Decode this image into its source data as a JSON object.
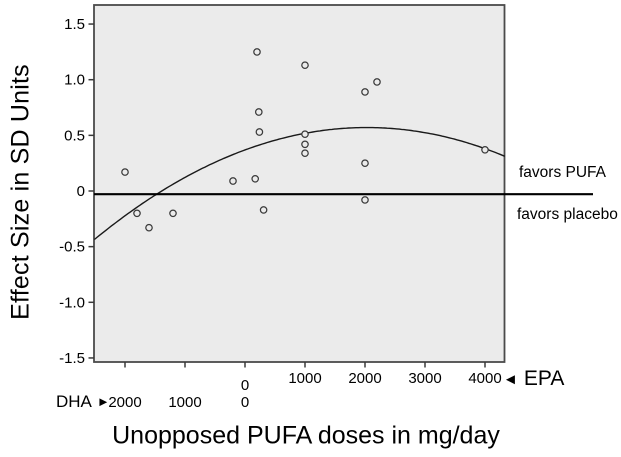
{
  "figure": {
    "y_axis_title": "Effect Size in SD Units",
    "x_axis_title": "Unopposed PUFA doses in mg/day",
    "favors_pufa": "favors PUFA",
    "favors_placebo": "favors placebo",
    "dha_label": "DHA",
    "epa_label": "EPA",
    "dha_arrow": "►",
    "epa_arrow": "◄"
  },
  "chart_data": {
    "type": "scatter",
    "title": "",
    "xlabel": "Unopposed PUFA doses in mg/day",
    "ylabel": "Effect Size in SD Units",
    "ylim": [
      -1.5,
      1.5
    ],
    "y_tick_labels": [
      "1.5",
      "1.0",
      "0.5",
      "0",
      "-0.5",
      "-1.0",
      "-1.5"
    ],
    "x_axis": {
      "note": "dual dose scale in mg/day: DHA decreases left-to-right to 0, then EPA increases; negative dose below means DHA side",
      "epa_tick_labels": [
        "0",
        "1000",
        "2000",
        "3000",
        "4000"
      ],
      "epa_tick_values": [
        0,
        1000,
        2000,
        3000,
        4000
      ],
      "dha_tick_labels": [
        "2000",
        "1000",
        "0"
      ],
      "dha_tick_values": [
        2000,
        1000,
        0
      ]
    },
    "zero_line": {
      "es": 0,
      "label_above": "favors PUFA",
      "label_below": "favors placebo"
    },
    "points": [
      {
        "dose": -2000,
        "es": 0.17
      },
      {
        "dose": -1800,
        "es": -0.2
      },
      {
        "dose": -1600,
        "es": -0.33
      },
      {
        "dose": -1200,
        "es": -0.2
      },
      {
        "dose": -200,
        "es": 0.09
      },
      {
        "dose": 170,
        "es": 0.11
      },
      {
        "dose": 200,
        "es": 1.25
      },
      {
        "dose": 230,
        "es": 0.71
      },
      {
        "dose": 240,
        "es": 0.53
      },
      {
        "dose": 310,
        "es": -0.17
      },
      {
        "dose": 1000,
        "es": 1.13
      },
      {
        "dose": 1000,
        "es": 0.51
      },
      {
        "dose": 1000,
        "es": 0.42
      },
      {
        "dose": 1000,
        "es": 0.34
      },
      {
        "dose": 2000,
        "es": 0.89
      },
      {
        "dose": 2000,
        "es": 0.25
      },
      {
        "dose": 2000,
        "es": -0.08
      },
      {
        "dose": 2200,
        "es": 0.98
      },
      {
        "dose": 4000,
        "es": 0.37
      }
    ],
    "trend": {
      "type": "quadratic",
      "peak_dose": 2030,
      "peak_es": 0.57,
      "curvature": -4.88e-08,
      "dose_range": [
        -2510,
        4330
      ]
    },
    "colors": {
      "plot_bg": "#ebebeb",
      "frame": "#4a4a4a",
      "marker": "#3a3a3a",
      "curve": "#1a1a1a",
      "zero_line": "#000000",
      "text": "#000000"
    }
  }
}
